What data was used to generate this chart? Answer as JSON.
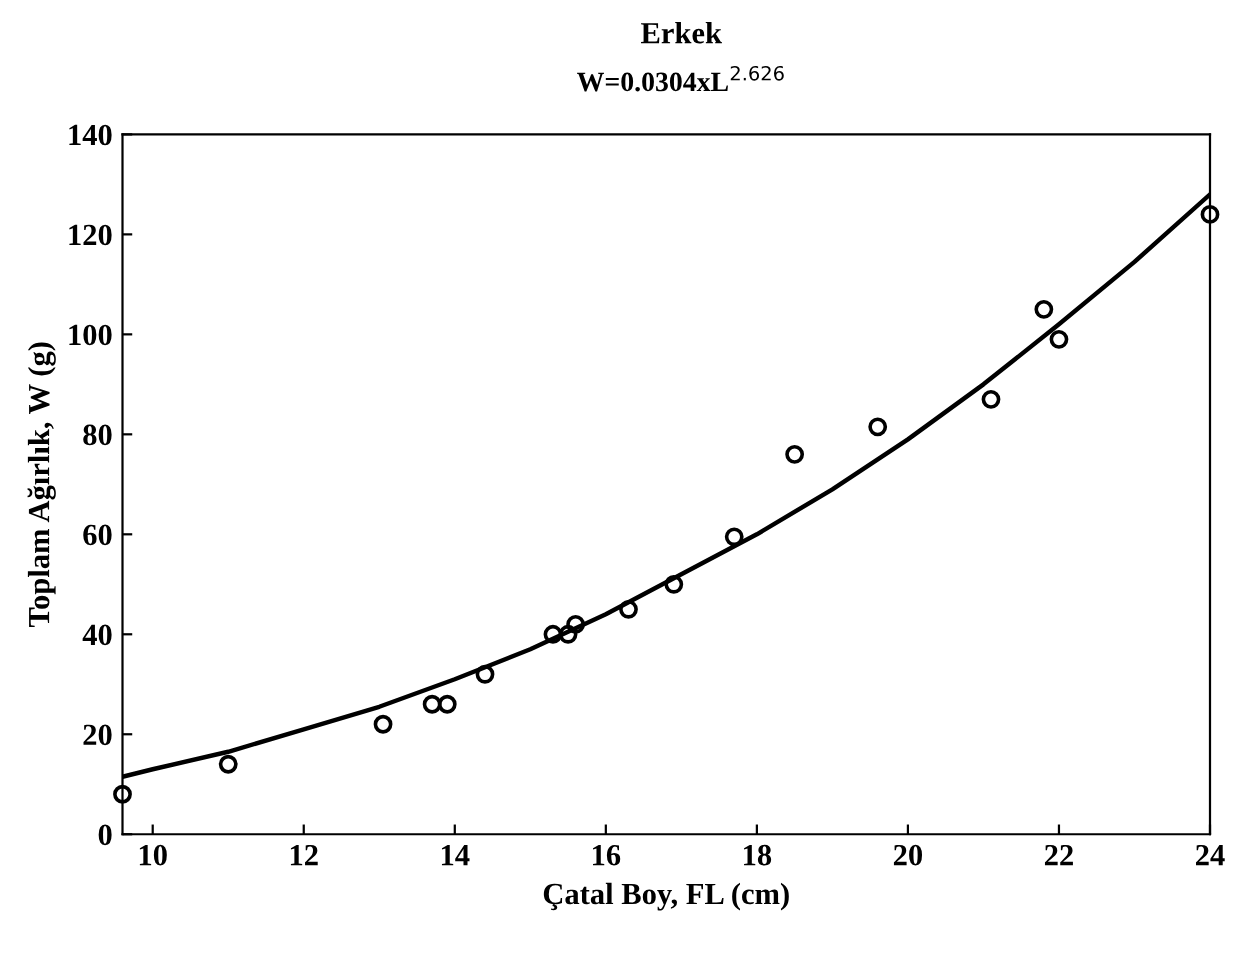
{
  "chart_data": {
    "type": "scatter",
    "title": "Erkek",
    "subtitle": "W=0.0304xL$^{2.626}$",
    "xlabel": "Çatal Boy, FL (cm)",
    "ylabel": "Toplam Ağırlık, W (g)",
    "xlim": [
      9.6,
      24
    ],
    "xticks": [
      10,
      12,
      14,
      16,
      18,
      20,
      22,
      24
    ],
    "ylim": [
      0,
      140
    ],
    "yticks": [
      0,
      20,
      40,
      60,
      80,
      100,
      120,
      140
    ],
    "grid": false,
    "legend": false,
    "series": [
      {
        "marker": "circle",
        "color": "#000000",
        "x": [
          9.6,
          11.0,
          13.05,
          13.7,
          13.9,
          14.4,
          15.3,
          15.5,
          15.6,
          16.3,
          16.9,
          17.7,
          18.5,
          19.6,
          21.1,
          21.8,
          22.0,
          24.0
        ],
        "values": [
          8,
          14,
          22,
          26,
          26,
          32,
          40,
          40,
          42,
          45,
          50,
          59.5,
          76,
          81.5,
          87,
          105,
          99,
          124
        ]
      },
      {
        "type": "line",
        "marker": "none",
        "line_style": "solid",
        "color": "#000000",
        "x": [
          9.6,
          10,
          11,
          12,
          13,
          14,
          15,
          16,
          17,
          18,
          19,
          20,
          21,
          22,
          23,
          24
        ],
        "values": [
          11.5,
          13,
          16.5,
          21,
          25.5,
          31,
          37,
          44,
          52,
          60,
          69,
          79,
          90,
          102,
          114.5,
          128
        ]
      }
    ]
  }
}
